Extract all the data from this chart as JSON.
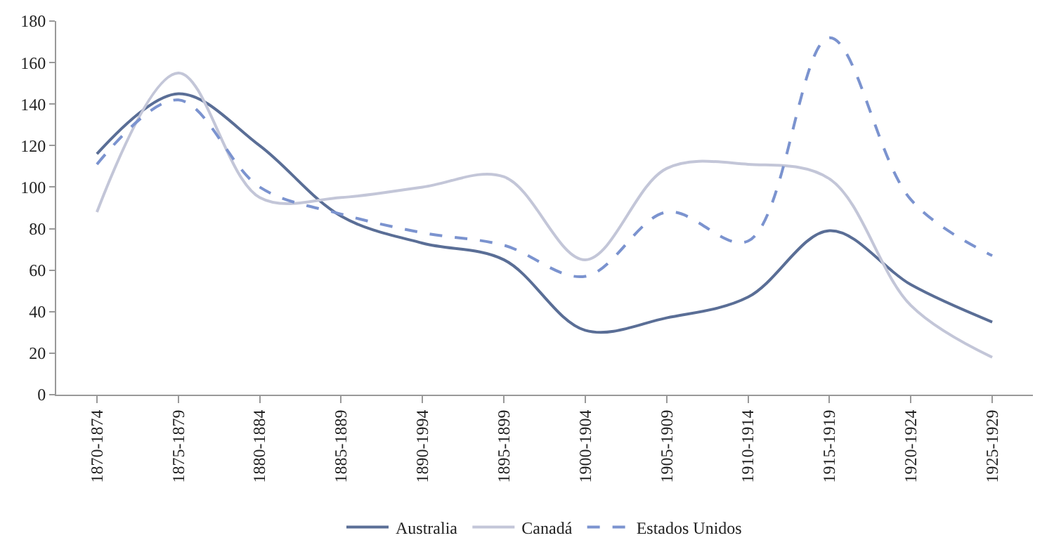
{
  "chart_data": {
    "type": "line",
    "categories": [
      "1870-1874",
      "1875-1879",
      "1880-1884",
      "1885-1889",
      "1890-1994",
      "1895-1899",
      "1900-1904",
      "1905-1909",
      "1910-1914",
      "1915-1919",
      "1920-1924",
      "1925-1929"
    ],
    "series": [
      {
        "name": "Australia",
        "color": "#5a6e96",
        "line_style": "solid",
        "values": [
          116,
          145,
          120,
          86,
          73,
          65,
          31,
          37,
          47,
          79,
          53,
          35
        ]
      },
      {
        "name": "Canadá",
        "color": "#c3c6d8",
        "line_style": "solid",
        "values": [
          88,
          155,
          95,
          95,
          100,
          105,
          65,
          109,
          111,
          104,
          43,
          18
        ]
      },
      {
        "name": "Estados Unidos",
        "color": "#7b93cf",
        "line_style": "dashed",
        "values": [
          111,
          142,
          100,
          87,
          78,
          72,
          57,
          88,
          74,
          172,
          94,
          67
        ]
      }
    ],
    "ylim": [
      0,
      180
    ],
    "yticks": [
      0,
      20,
      40,
      60,
      80,
      100,
      120,
      140,
      160,
      180
    ],
    "legend": "bottom"
  }
}
